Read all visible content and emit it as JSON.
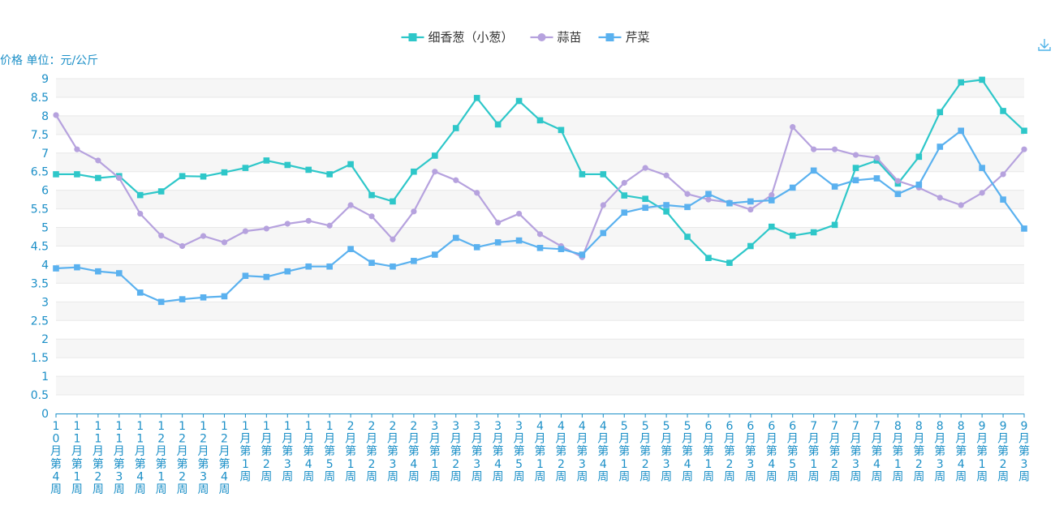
{
  "colors": {
    "axis": "#1b8fc7",
    "grid": "#e8e8e8",
    "band": "#f6f6f6",
    "icon": "#4fb3e8"
  },
  "toolbar": {
    "download_icon": "download-icon"
  },
  "chart_data": {
    "type": "line",
    "ylabel": "价格 单位：元/公斤",
    "ylim": [
      0,
      9
    ],
    "yticks": [
      0,
      0.5,
      1,
      1.5,
      2,
      2.5,
      3,
      3.5,
      4,
      4.5,
      5,
      5.5,
      6,
      6.5,
      7,
      7.5,
      8,
      8.5,
      9
    ],
    "legend_position": "top-center",
    "grid": true,
    "categories": [
      "10月第4周",
      "11月第1周",
      "11月第2周",
      "11月第3周",
      "11月第4周",
      "12月第1周",
      "12月第2周",
      "12月第3周",
      "12月第4周",
      "1月第1周",
      "1月第2周",
      "1月第3周",
      "1月第4周",
      "1月第5周",
      "2月第1周",
      "2月第2周",
      "2月第3周",
      "2月第4周",
      "3月第1周",
      "3月第2周",
      "3月第3周",
      "3月第4周",
      "3月第5周",
      "4月第1周",
      "4月第2周",
      "4月第3周",
      "4月第4周",
      "5月第1周",
      "5月第2周",
      "5月第3周",
      "5月第4周",
      "6月第1周",
      "6月第2周",
      "6月第3周",
      "6月第4周",
      "6月第5周",
      "7月第1周",
      "7月第2周",
      "7月第3周",
      "7月第4周",
      "8月第1周",
      "8月第2周",
      "8月第3周",
      "8月第4周",
      "9月第1周",
      "9月第2周",
      "9月第3周"
    ],
    "series": [
      {
        "name": "细香葱（小葱）",
        "color": "#2ec7c9",
        "marker": "square",
        "values": [
          6.43,
          6.43,
          6.33,
          6.38,
          5.87,
          5.97,
          6.38,
          6.37,
          6.48,
          6.6,
          6.8,
          6.68,
          6.55,
          6.43,
          6.7,
          5.87,
          5.7,
          6.5,
          6.93,
          7.67,
          8.48,
          7.77,
          8.4,
          7.88,
          7.62,
          6.43,
          6.43,
          5.86,
          5.77,
          5.43,
          4.75,
          4.18,
          4.05,
          4.5,
          5.02,
          4.78,
          4.87,
          5.07,
          6.6,
          6.8,
          6.18,
          6.9,
          8.1,
          8.9,
          8.97,
          8.13,
          7.6
        ]
      },
      {
        "name": "蒜苗",
        "color": "#b6a2de",
        "marker": "circle",
        "values": [
          8.02,
          7.1,
          6.8,
          6.33,
          5.37,
          4.78,
          4.5,
          4.77,
          4.6,
          4.9,
          4.97,
          5.1,
          5.18,
          5.05,
          5.6,
          5.3,
          4.68,
          5.43,
          6.5,
          6.27,
          5.93,
          5.13,
          5.37,
          4.82,
          4.5,
          4.2,
          5.6,
          6.2,
          6.6,
          6.4,
          5.9,
          5.75,
          5.67,
          5.48,
          5.87,
          7.7,
          7.1,
          7.1,
          6.95,
          6.87,
          6.25,
          6.07,
          5.8,
          5.6,
          5.93,
          6.43,
          7.1
        ]
      },
      {
        "name": "芹菜",
        "color": "#5ab1ef",
        "marker": "square",
        "values": [
          3.9,
          3.93,
          3.82,
          3.77,
          3.25,
          3.0,
          3.07,
          3.12,
          3.15,
          3.7,
          3.67,
          3.82,
          3.95,
          3.95,
          4.42,
          4.05,
          3.95,
          4.1,
          4.27,
          4.72,
          4.47,
          4.6,
          4.65,
          4.45,
          4.42,
          4.27,
          4.85,
          5.4,
          5.53,
          5.6,
          5.55,
          5.9,
          5.65,
          5.7,
          5.73,
          6.07,
          6.53,
          6.1,
          6.27,
          6.32,
          5.9,
          6.15,
          7.17,
          7.6,
          6.6,
          5.75,
          4.97
        ]
      }
    ]
  }
}
